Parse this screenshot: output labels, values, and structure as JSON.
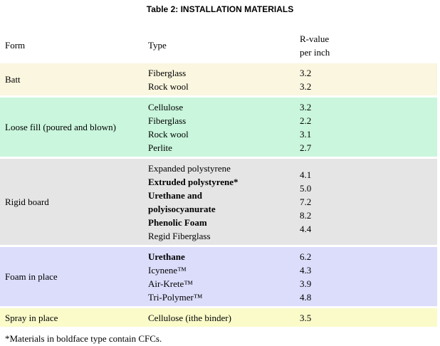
{
  "title": "Table 2: INSTALLATION MATERIALS",
  "headers": {
    "form": "Form",
    "type": "Type",
    "rvalue_line1": "R-value",
    "rvalue_line2": "per inch"
  },
  "rows": [
    {
      "form": "Batt",
      "color": "#faf6df",
      "types": [
        {
          "text": "Fiberglass",
          "bold": false
        },
        {
          "text": "Rock wool",
          "bold": false
        }
      ],
      "values": [
        "3.2",
        "3.2"
      ]
    },
    {
      "form": "Loose fill (poured and blown)",
      "color": "#c9f6dc",
      "types": [
        {
          "text": "Cellulose",
          "bold": false
        },
        {
          "text": "Fiberglass",
          "bold": false
        },
        {
          "text": "Rock wool",
          "bold": false
        },
        {
          "text": "Perlite",
          "bold": false
        }
      ],
      "values": [
        "3.2",
        "2.2",
        "3.1",
        "2.7"
      ]
    },
    {
      "form": "Rigid board",
      "color": "#e5e5e5",
      "types": [
        {
          "text": "Expanded polystyrene",
          "bold": false
        },
        {
          "text": "Extruded polystyrene*",
          "bold": true
        },
        {
          "text": "Urethane and",
          "bold": true
        },
        {
          "text": "polyisocyanurate",
          "bold": true
        },
        {
          "text": "Phenolic Foam",
          "bold": true
        },
        {
          "text": "Regid Fiberglass",
          "bold": false
        }
      ],
      "values": [
        "4.1",
        "5.0",
        "7.2",
        "8.2",
        "4.4"
      ]
    },
    {
      "form": "Foam in place",
      "color": "#dcddfb",
      "types": [
        {
          "text": "Urethane",
          "bold": true
        },
        {
          "text": "Icynene™",
          "bold": false
        },
        {
          "text": "Air-Krete™",
          "bold": false
        },
        {
          "text": "Tri-Polymer™",
          "bold": false
        }
      ],
      "values": [
        "6.2",
        "4.3",
        "3.9",
        "4.8"
      ]
    },
    {
      "form": "Spray in place",
      "color": "#fafbc9",
      "types": [
        {
          "text": "Cellulose (ithe binder)",
          "bold": false
        }
      ],
      "values": [
        "3.5"
      ]
    }
  ],
  "footnote": "*Materials in boldface type contain CFCs."
}
